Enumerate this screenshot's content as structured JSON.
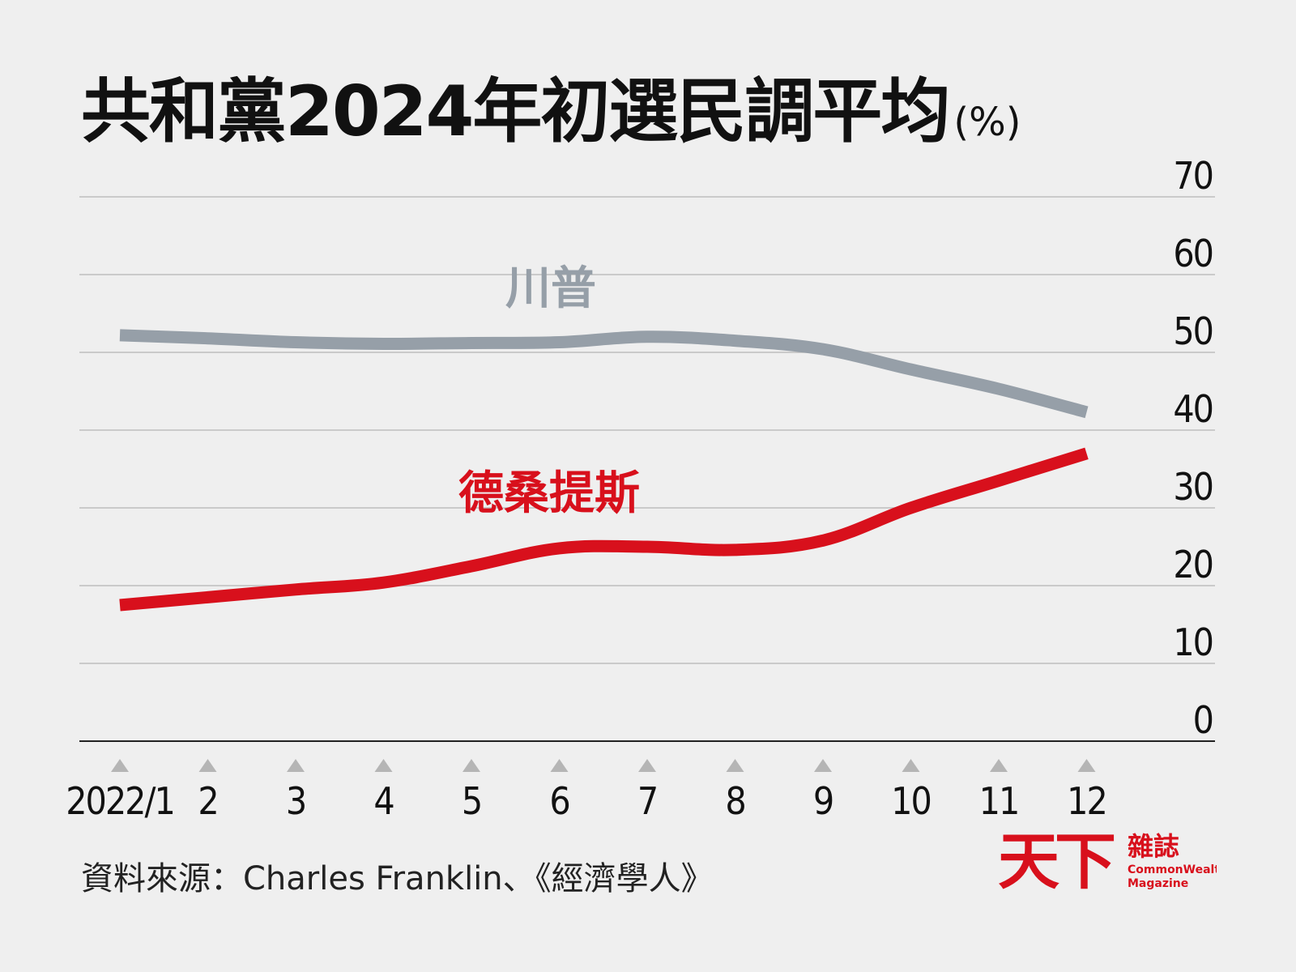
{
  "title": "共和黨2024年初選民調平均",
  "title_unit": "(%)",
  "source": "資料來源：Charles Franklin、《經濟學人》",
  "logo": {
    "mark": "天下",
    "name_zh": "雜誌",
    "name_en1": "CommonWealth",
    "name_en2": "Magazine"
  },
  "colors": {
    "trump": "#969fa8",
    "desantis": "#d8101c",
    "grid": "#bdbdbd",
    "axis": "#222222",
    "tick_marker": "#b5b5b5",
    "background": "#efefef"
  },
  "chart_data": {
    "type": "line",
    "x": [
      "2022/1",
      "2",
      "3",
      "4",
      "5",
      "6",
      "7",
      "8",
      "9",
      "10",
      "11",
      "12"
    ],
    "ylim": [
      0,
      70
    ],
    "yticks": [
      "0",
      "10",
      "20",
      "30",
      "40",
      "50",
      "60",
      "70"
    ],
    "grid": true,
    "y_axis_position": "right",
    "series": [
      {
        "name": "川普",
        "color": "#969fa8",
        "values": [
          52.2,
          51.8,
          51.3,
          51.1,
          51.2,
          51.3,
          52.0,
          51.5,
          50.4,
          47.8,
          45.3,
          42.3
        ]
      },
      {
        "name": "德桑提斯",
        "color": "#d8101c",
        "values": [
          17.5,
          18.5,
          19.5,
          20.4,
          22.5,
          24.8,
          25.0,
          24.6,
          25.8,
          30.0,
          33.5,
          37.0
        ]
      }
    ]
  }
}
